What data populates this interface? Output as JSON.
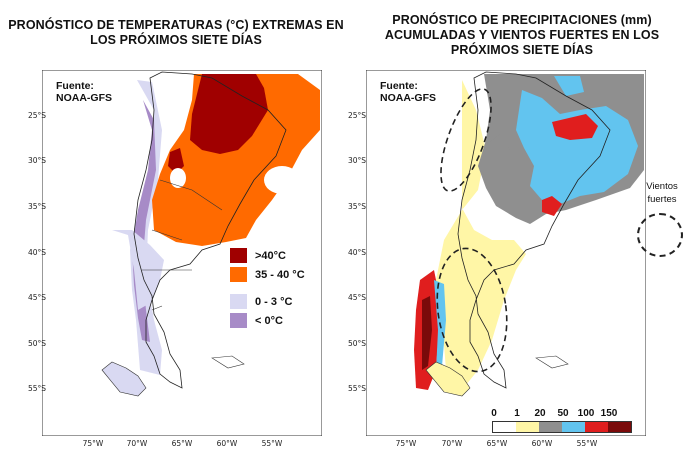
{
  "left_map": {
    "title": "PRONÓSTICO DE TEMPERATURAS (°C) EXTREMAS EN\nLOS PRÓXIMOS SIETE DÍAS",
    "source": "Fuente:\nNOAA-GFS",
    "legend": [
      {
        "label": ">40°C",
        "color": "#a00000"
      },
      {
        "label": "35 - 40 °C",
        "color": "#ff6a00"
      },
      {
        "label": "0 - 3 °C",
        "color": "#d9d9f2"
      },
      {
        "label": "< 0°C",
        "color": "#a78bc7"
      }
    ]
  },
  "right_map": {
    "title": "PRONÓSTICO DE PRECIPITACIONES (mm)\nACUMULADAS Y VIENTOS FUERTES EN LOS\nPRÓXIMOS SIETE DÍAS",
    "source": "Fuente:\nNOAA-GFS",
    "scale_ticks": [
      "0",
      "1",
      "20",
      "50",
      "100",
      "150"
    ],
    "scale_colors": [
      "#ffffff",
      "#fff6a6",
      "#8f8f8f",
      "#62c4ef",
      "#e01e1e",
      "#7a0a0a"
    ],
    "wind_legend": "Vientos\nfuertes"
  },
  "lat_labels": [
    "25°S",
    "30°S",
    "35°S",
    "40°S",
    "45°S",
    "50°S",
    "55°S"
  ],
  "lon_labels": [
    "75°W",
    "70°W",
    "65°W",
    "60°W",
    "55°W"
  ]
}
